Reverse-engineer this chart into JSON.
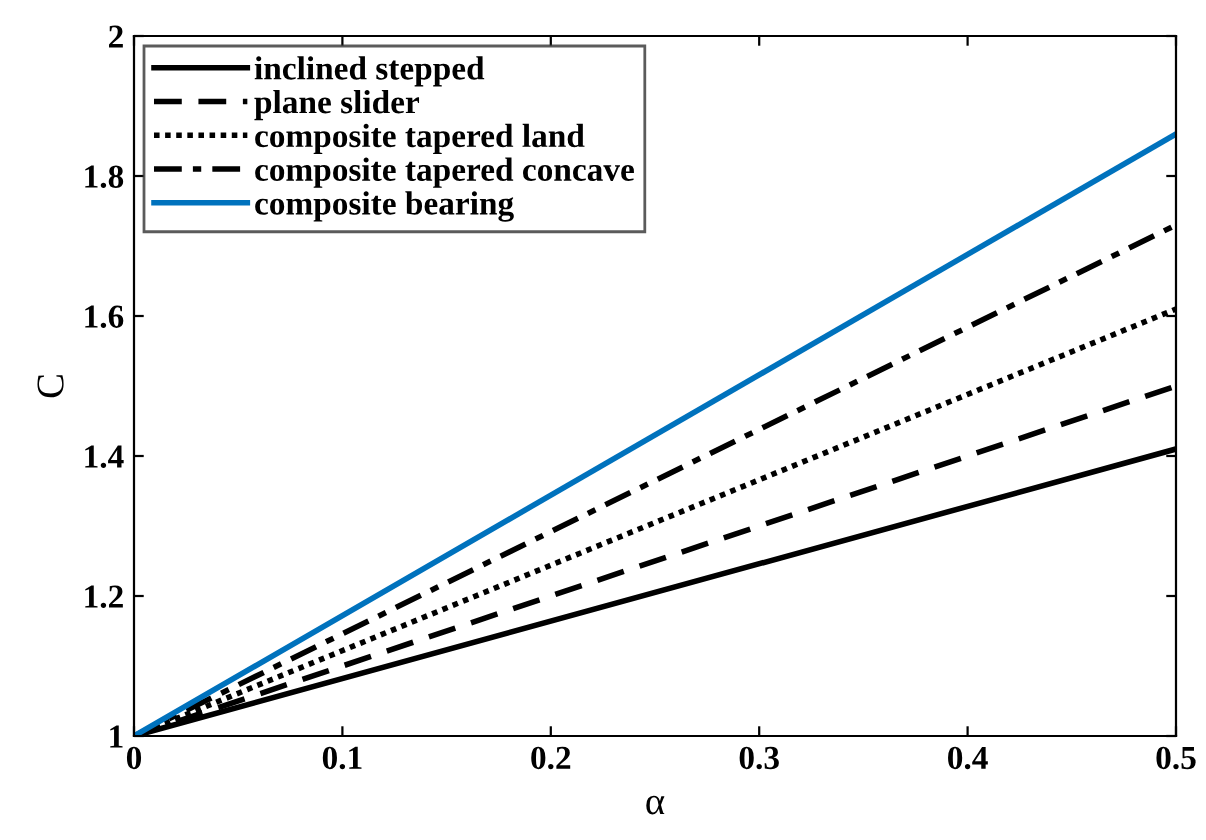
{
  "chart_data": {
    "type": "line",
    "xlabel": "α",
    "ylabel": "C",
    "x": [
      0,
      0.5
    ],
    "series": [
      {
        "name": "inclined stepped",
        "color": "#000000",
        "line_style": "solid",
        "values": [
          1,
          1.41
        ]
      },
      {
        "name": "plane slider",
        "color": "#000000",
        "line_style": "dashed",
        "values": [
          1,
          1.5
        ]
      },
      {
        "name": "composite tapered land",
        "color": "#000000",
        "line_style": "dotted",
        "values": [
          1,
          1.61
        ]
      },
      {
        "name": "composite tapered concave",
        "color": "#000000",
        "line_style": "dashdot",
        "values": [
          1,
          1.73
        ]
      },
      {
        "name": "composite bearing",
        "color": "#0072bd",
        "line_style": "solid",
        "values": [
          1,
          1.86
        ]
      }
    ],
    "xlim": [
      0,
      0.5
    ],
    "xticks": [
      0,
      0.1,
      0.2,
      0.3,
      0.4,
      0.5
    ],
    "ylim": [
      1,
      2
    ],
    "yticks": [
      1,
      1.2,
      1.4,
      1.6,
      1.8,
      2
    ],
    "grid": false,
    "legend": "top left",
    "marker": "none"
  }
}
